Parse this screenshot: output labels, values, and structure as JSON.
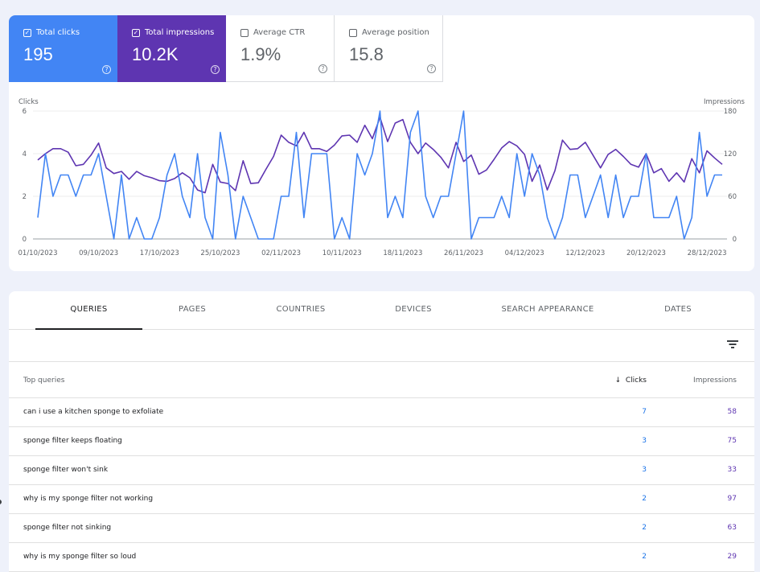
{
  "metrics": {
    "clicks": {
      "label": "Total clicks",
      "value": "195",
      "checked": true
    },
    "impressions": {
      "label": "Total impressions",
      "value": "10.2K",
      "checked": true
    },
    "ctr": {
      "label": "Average CTR",
      "value": "1.9%",
      "checked": false
    },
    "position": {
      "label": "Average position",
      "value": "15.8",
      "checked": false
    },
    "help_glyph": "?"
  },
  "colors": {
    "clicks": "#4285f4",
    "impressions": "#5e35b1"
  },
  "chart_data": {
    "type": "line",
    "x_tick_labels": [
      "01/10/2023",
      "09/10/2023",
      "17/10/2023",
      "25/10/2023",
      "02/11/2023",
      "10/11/2023",
      "18/11/2023",
      "26/11/2023",
      "04/12/2023",
      "12/12/2023",
      "20/12/2023",
      "28/12/2023"
    ],
    "x_tick_index": [
      0,
      8,
      16,
      24,
      32,
      40,
      48,
      56,
      64,
      72,
      80,
      88
    ],
    "y_left": {
      "label": "Clicks",
      "ticks": [
        0,
        2,
        4,
        6
      ],
      "range": [
        0,
        6
      ]
    },
    "y_right": {
      "label": "Impressions",
      "ticks": [
        0,
        60,
        120,
        180
      ],
      "range": [
        0,
        180
      ]
    },
    "series": [
      {
        "name": "Clicks",
        "axis": "left",
        "values": [
          1,
          4,
          2,
          3,
          3,
          2,
          3,
          3,
          4,
          2,
          0,
          3,
          0,
          1,
          0,
          0,
          1,
          3,
          4,
          2,
          1,
          4,
          1,
          0,
          5,
          3,
          0,
          2,
          1,
          0,
          0,
          0,
          2,
          2,
          5,
          1,
          4,
          4,
          4,
          0,
          1,
          0,
          4,
          3,
          4,
          6,
          1,
          2,
          1,
          5,
          6,
          2,
          1,
          2,
          2,
          4,
          6,
          0,
          1,
          1,
          1,
          2,
          1,
          4,
          2,
          4,
          3,
          1,
          0,
          1,
          3,
          3,
          1,
          2,
          3,
          1,
          3,
          1,
          2,
          2,
          4,
          1,
          1,
          1,
          2,
          0,
          1,
          5,
          2,
          3,
          3
        ]
      },
      {
        "name": "Impressions",
        "axis": "right",
        "values": [
          111,
          120,
          127,
          127,
          122,
          103,
          105,
          118,
          135,
          100,
          92,
          95,
          84,
          95,
          89,
          86,
          82,
          81,
          85,
          93,
          86,
          69,
          65,
          105,
          80,
          78,
          68,
          110,
          78,
          79,
          98,
          116,
          146,
          136,
          131,
          150,
          127,
          127,
          123,
          132,
          145,
          146,
          136,
          160,
          141,
          171,
          137,
          163,
          168,
          136,
          120,
          135,
          126,
          115,
          100,
          136,
          109,
          118,
          91,
          97,
          112,
          128,
          137,
          131,
          119,
          81,
          104,
          69,
          96,
          139,
          126,
          127,
          136,
          118,
          100,
          119,
          126,
          116,
          105,
          101,
          120,
          93,
          99,
          81,
          93,
          80,
          113,
          93,
          124,
          114,
          105
        ]
      }
    ]
  },
  "tabs": [
    "QUERIES",
    "PAGES",
    "COUNTRIES",
    "DEVICES",
    "SEARCH APPEARANCE",
    "DATES"
  ],
  "table": {
    "headers": {
      "query": "Top queries",
      "clicks": "Clicks",
      "impressions": "Impressions",
      "sort_icon": "↓"
    },
    "rows": [
      {
        "query": "can i use a kitchen sponge to exfoliate",
        "clicks": "7",
        "impressions": "58"
      },
      {
        "query": "sponge filter keeps floating",
        "clicks": "3",
        "impressions": "75"
      },
      {
        "query": "sponge filter won't sink",
        "clicks": "3",
        "impressions": "33"
      },
      {
        "query": "why is my sponge filter not working",
        "clicks": "2",
        "impressions": "97"
      },
      {
        "query": "sponge filter not sinking",
        "clicks": "2",
        "impressions": "63"
      },
      {
        "query": "why is my sponge filter so loud",
        "clicks": "2",
        "impressions": "29"
      }
    ]
  }
}
